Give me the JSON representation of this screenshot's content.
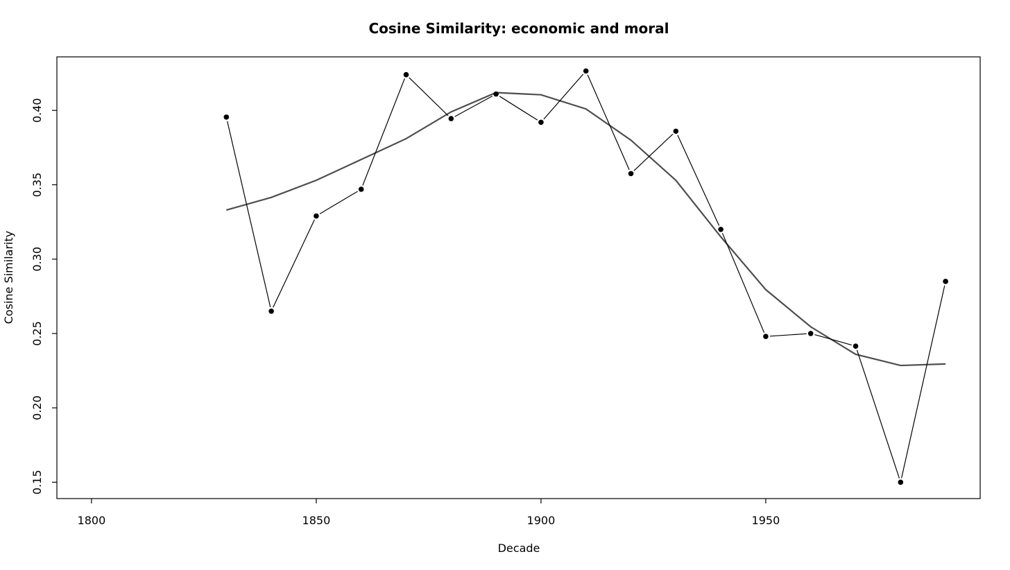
{
  "chart_data": {
    "type": "line",
    "title": "Cosine Similarity: economic and moral",
    "xlabel": "Decade",
    "ylabel": "Cosine Similarity",
    "xlim": [
      1792.3,
      1997.7
    ],
    "ylim": [
      0.139,
      0.436
    ],
    "xticks": [
      1800,
      1850,
      1900,
      1950
    ],
    "yticks": [
      0.15,
      0.2,
      0.25,
      0.3,
      0.35,
      0.4
    ],
    "ytick_labels": [
      "0.15",
      "0.20",
      "0.25",
      "0.30",
      "0.35",
      "0.40"
    ],
    "grid": false,
    "legend": "none",
    "series": [
      {
        "style": "points-and-lines",
        "color": "#000000",
        "x": [
          1830,
          1840,
          1850,
          1860,
          1870,
          1880,
          1890,
          1900,
          1910,
          1920,
          1930,
          1940,
          1950,
          1960,
          1970,
          1980,
          1990
        ],
        "y": [
          0.3955,
          0.265,
          0.329,
          0.347,
          0.424,
          0.3945,
          0.411,
          0.392,
          0.4265,
          0.3575,
          0.386,
          0.32,
          0.248,
          0.25,
          0.2415,
          0.15,
          0.285
        ]
      },
      {
        "style": "smooth-line",
        "color": "#4d4d4d",
        "x": [
          1830,
          1840,
          1850,
          1860,
          1870,
          1880,
          1890,
          1900,
          1910,
          1920,
          1930,
          1940,
          1950,
          1960,
          1970,
          1980,
          1990
        ],
        "y": [
          0.333,
          0.3415,
          0.353,
          0.367,
          0.381,
          0.399,
          0.412,
          0.4105,
          0.401,
          0.38,
          0.353,
          0.315,
          0.2795,
          0.2545,
          0.236,
          0.2285,
          0.2295
        ]
      }
    ]
  }
}
